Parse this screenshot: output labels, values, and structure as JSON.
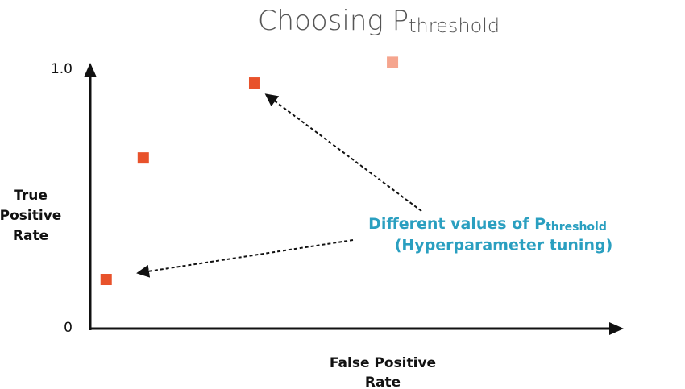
{
  "chart_data": {
    "type": "scatter",
    "title": "Choosing P",
    "title_subscript": "threshold",
    "y_label": [
      "True",
      "Positive",
      "Rate"
    ],
    "x_label": [
      "False Positive",
      "Rate"
    ],
    "annotation": {
      "text": "Different values of P",
      "subscript": "threshold",
      "line2": "(Hyperparameter tuning)"
    },
    "x": [
      0.03,
      0.1,
      0.31,
      0.57
    ],
    "values": [
      0.19,
      0.66,
      0.95,
      1.03
    ],
    "point_colors": [
      "#e8522b",
      "#e8522b",
      "#e8522b",
      "#f5a58e"
    ],
    "xlim": [
      0,
      1
    ],
    "ylim": [
      0,
      1
    ],
    "yticks": [
      0,
      {
        "value": 1,
        "label": "1.0"
      }
    ]
  }
}
